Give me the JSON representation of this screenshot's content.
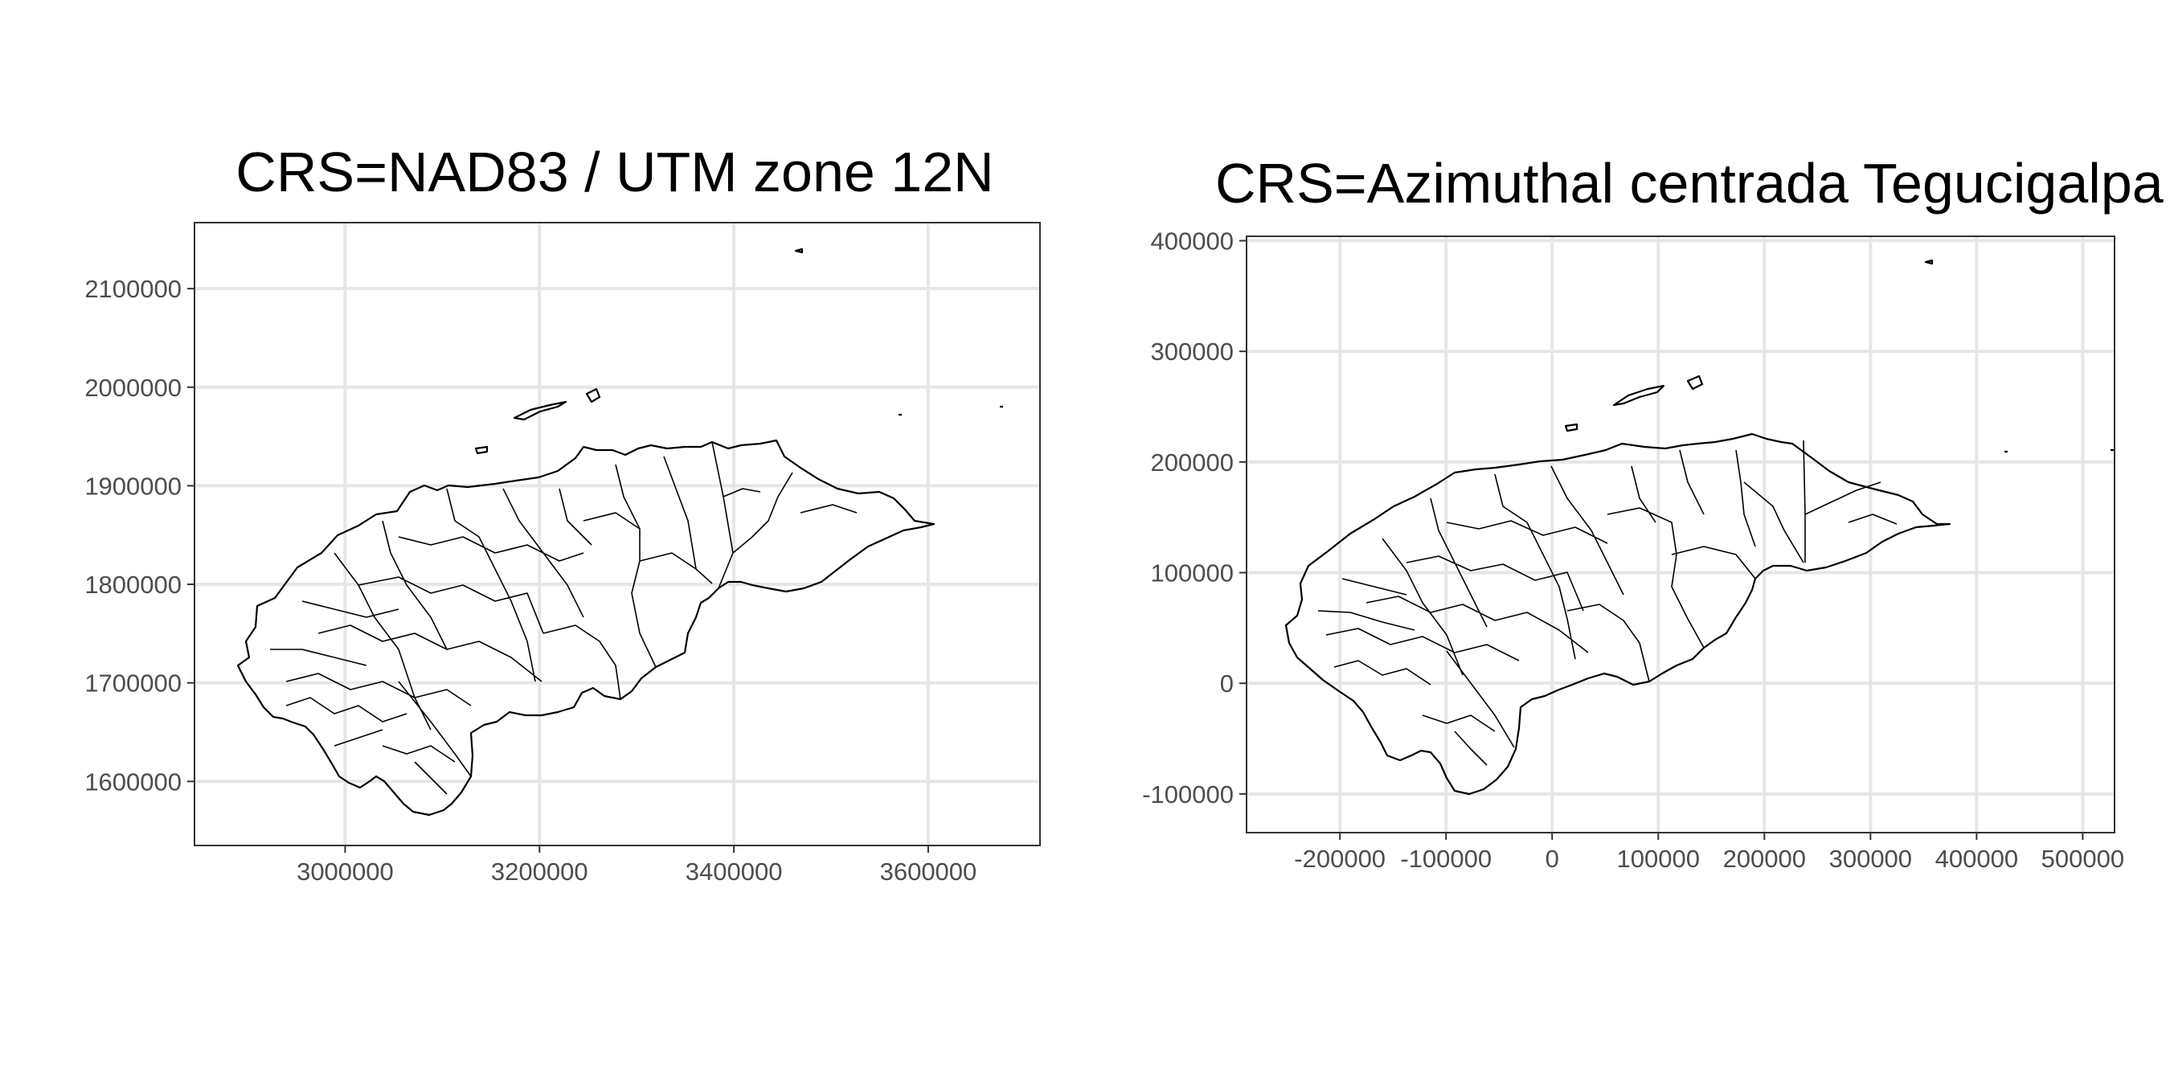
{
  "chart_data": [
    {
      "type": "map",
      "title": "CRS=NAD83 / UTM zone 12N",
      "xlabel": "",
      "ylabel": "",
      "xlim": [
        2845000,
        3715000
      ],
      "ylim": [
        1535000,
        2167000
      ],
      "x_ticks": [
        {
          "value": 3000000,
          "label": "3000000"
        },
        {
          "value": 3200000,
          "label": "3200000"
        },
        {
          "value": 3400000,
          "label": "3400000"
        },
        {
          "value": 3600000,
          "label": "3600000"
        }
      ],
      "y_ticks": [
        {
          "value": 1600000,
          "label": "1600000"
        },
        {
          "value": 1700000,
          "label": "1700000"
        },
        {
          "value": 1800000,
          "label": "1800000"
        },
        {
          "value": 1900000,
          "label": "1900000"
        },
        {
          "value": 2000000,
          "label": "2000000"
        },
        {
          "value": 2100000,
          "label": "2100000"
        }
      ],
      "grid": true
    },
    {
      "type": "map",
      "title": "CRS=Azimuthal centrada Tegucigalpa",
      "xlabel": "",
      "ylabel": "",
      "xlim": [
        -288000,
        530000
      ],
      "ylim": [
        -135000,
        404000
      ],
      "x_ticks": [
        {
          "value": -200000,
          "label": "-200000"
        },
        {
          "value": -100000,
          "label": "-100000"
        },
        {
          "value": 0,
          "label": "0"
        },
        {
          "value": 100000,
          "label": "100000"
        },
        {
          "value": 200000,
          "label": "200000"
        },
        {
          "value": 300000,
          "label": "300000"
        },
        {
          "value": 400000,
          "label": "400000"
        },
        {
          "value": 500000,
          "label": "500000"
        }
      ],
      "y_ticks": [
        {
          "value": -100000,
          "label": "-100000"
        },
        {
          "value": 0,
          "label": "0"
        },
        {
          "value": 100000,
          "label": "100000"
        },
        {
          "value": 200000,
          "label": "200000"
        },
        {
          "value": 300000,
          "label": "300000"
        },
        {
          "value": 400000,
          "label": "400000"
        }
      ],
      "grid": true
    }
  ]
}
